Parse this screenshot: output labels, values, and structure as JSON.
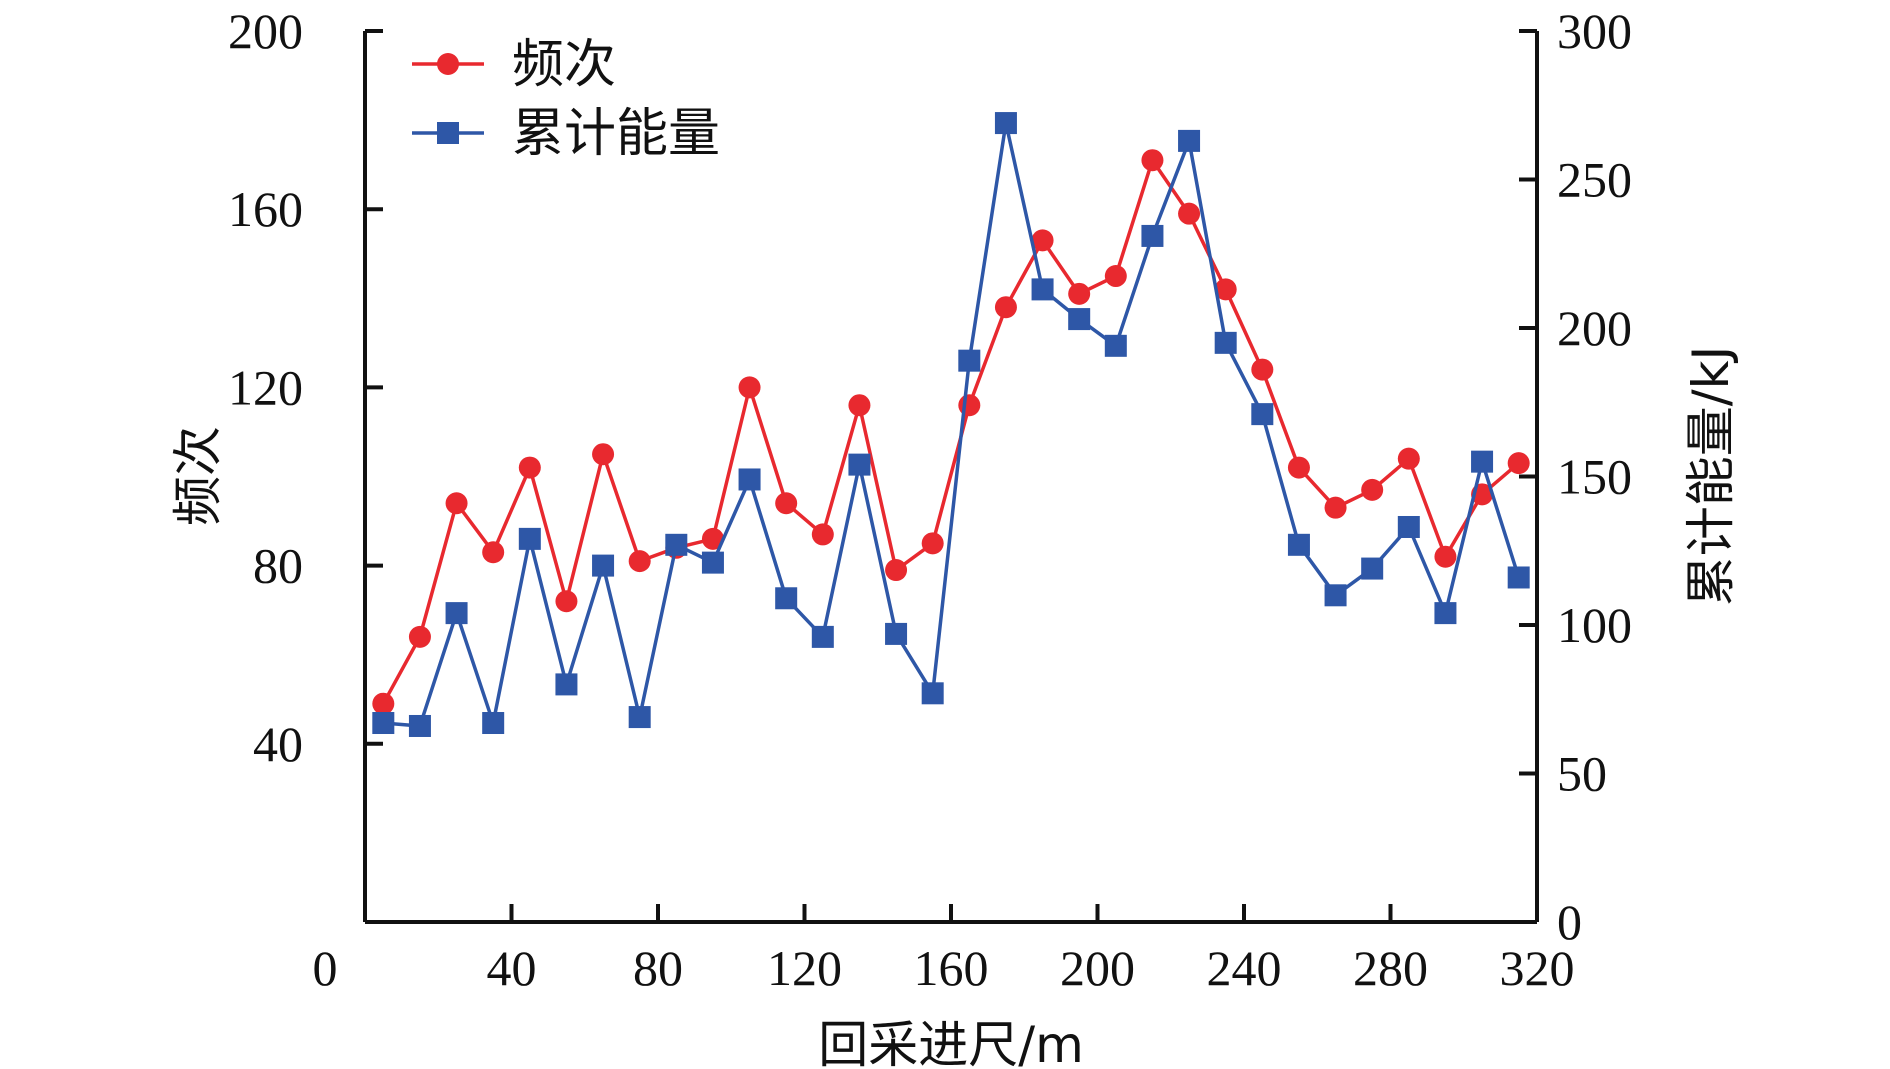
{
  "chart_data": {
    "type": "line",
    "xlabel": "回采进尺/m",
    "ylabel_left": "频次",
    "ylabel_right": "累计能量/kJ",
    "xlim": [
      0,
      320
    ],
    "ylim_left": [
      0,
      200
    ],
    "ylim_right": [
      0,
      300
    ],
    "x_ticks": [
      0,
      40,
      80,
      120,
      160,
      200,
      240,
      280,
      320
    ],
    "y_left_ticks": [
      40,
      80,
      120,
      160,
      200
    ],
    "y_right_ticks": [
      0,
      50,
      100,
      150,
      200,
      250,
      300
    ],
    "grid": false,
    "legend_position": "top-left",
    "x": [
      5,
      15,
      25,
      35,
      45,
      55,
      65,
      75,
      85,
      95,
      105,
      115,
      125,
      135,
      145,
      155,
      165,
      175,
      185,
      195,
      205,
      215,
      225,
      235,
      245,
      255,
      265,
      275,
      285,
      295,
      305,
      315
    ],
    "series": [
      {
        "name": "频次",
        "axis": "left",
        "color": "#e8292f",
        "marker": "circle",
        "values": [
          49,
          64,
          94,
          83,
          102,
          72,
          105,
          81,
          84,
          86,
          120,
          94,
          87,
          116,
          79,
          85,
          116,
          138,
          153,
          141,
          145,
          171,
          159,
          142,
          124,
          102,
          93,
          97,
          104,
          82,
          96,
          103
        ]
      },
      {
        "name": "累计能量",
        "axis": "right",
        "color": "#2e57a7",
        "marker": "square",
        "values": [
          67,
          66,
          104,
          67,
          129,
          80,
          120,
          69,
          127,
          121,
          149,
          109,
          96,
          154,
          97,
          77,
          189,
          269,
          213,
          203,
          194,
          231,
          263,
          195,
          171,
          127,
          110,
          119,
          133,
          104,
          155,
          116
        ]
      }
    ]
  }
}
